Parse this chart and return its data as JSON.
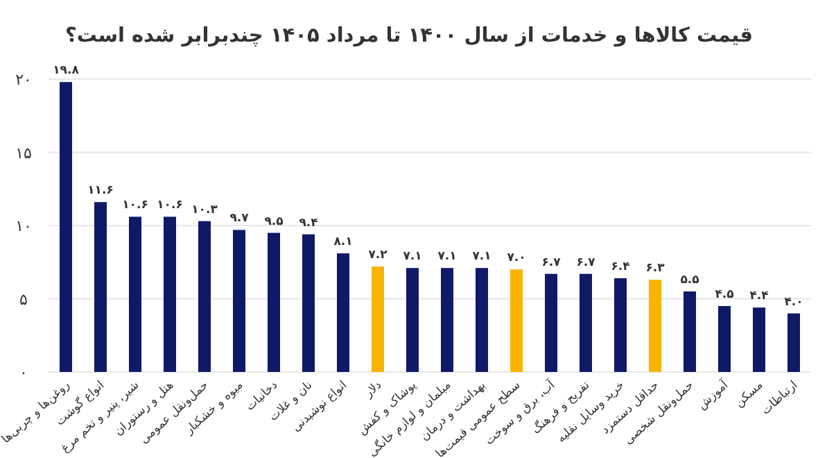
{
  "chart_data": {
    "type": "bar",
    "title": "قیمت کالاها و خدمات از سال ۱۴۰۰ تا مرداد ۱۴۰۵ چندبرابر شده است؟",
    "categories": [
      "روغن‌ها و چربی‌ها",
      "انواع گوشت",
      "شیر، پنیر و تخم مرغ",
      "هتل و رستوران",
      "حمل‌ونقل عمومی",
      "میوه و خشکبار",
      "دخانیات",
      "نان و غلات",
      "انواع نوشیدنی",
      "دلار",
      "پوشاک و کفش",
      "مبلمان و لوازم خانگی",
      "بهداشت و درمان",
      "سطح عمومی قیمت‌ها",
      "آب، برق و سوخت",
      "تفریح و فرهنگ",
      "خرید وسایل نقلیه",
      "حداقل دستمزد",
      "حمل‌ونقل شخصی",
      "آموزش",
      "مسکن",
      "ارتباطات"
    ],
    "values": [
      19.8,
      11.6,
      10.6,
      10.6,
      10.3,
      9.7,
      9.5,
      9.4,
      8.1,
      7.2,
      7.1,
      7.1,
      7.1,
      7.0,
      6.7,
      6.7,
      6.4,
      6.3,
      5.5,
      4.5,
      4.4,
      4.0
    ],
    "value_labels": [
      "۱۹.۸",
      "۱۱.۶",
      "۱۰.۶",
      "۱۰.۶",
      "۱۰.۳",
      "۹.۷",
      "۹.۵",
      "۹.۴",
      "۸.۱",
      "۷.۲",
      "۷.۱",
      "۷.۱",
      "۷.۱",
      "۷.۰",
      "۶.۷",
      "۶.۷",
      "۶.۴",
      "۶.۳",
      "۵.۵",
      "۴.۵",
      "۴.۴",
      "۴.۰"
    ],
    "colors": [
      "#0f1a66",
      "#0f1a66",
      "#0f1a66",
      "#0f1a66",
      "#0f1a66",
      "#0f1a66",
      "#0f1a66",
      "#0f1a66",
      "#0f1a66",
      "#f8b400",
      "#0f1a66",
      "#0f1a66",
      "#0f1a66",
      "#f8b400",
      "#0f1a66",
      "#0f1a66",
      "#0f1a66",
      "#f8b400",
      "#0f1a66",
      "#0f1a66",
      "#0f1a66",
      "#0f1a66"
    ],
    "ylim": [
      0,
      20
    ],
    "yticks": [
      {
        "value": 0,
        "label": "۰"
      },
      {
        "value": 5,
        "label": "۵"
      },
      {
        "value": 10,
        "label": "۱۰"
      },
      {
        "value": 15,
        "label": "۱۵"
      },
      {
        "value": 20,
        "label": "۲۰"
      }
    ],
    "grid": "y"
  }
}
